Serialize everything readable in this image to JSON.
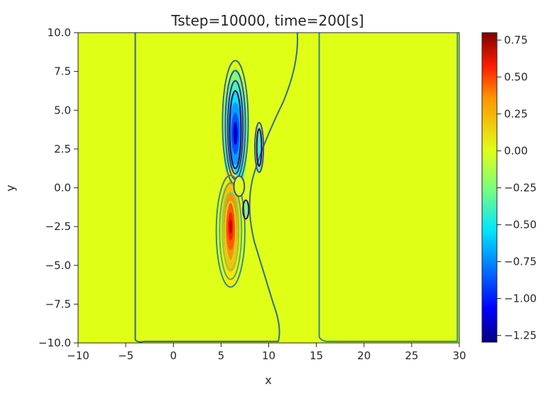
{
  "chart_data": {
    "type": "heatmap",
    "title": "Tstep=10000, time=200[s]",
    "xlabel": "x",
    "ylabel": "y",
    "xlim": [
      -10,
      30
    ],
    "ylim": [
      -10,
      10
    ],
    "x_ticks": [
      -10,
      -5,
      0,
      5,
      10,
      15,
      20,
      25,
      30
    ],
    "x_tick_labels": [
      "−10",
      "−5",
      "0",
      "5",
      "10",
      "15",
      "20",
      "25",
      "30"
    ],
    "y_ticks": [
      -10,
      -7.5,
      -5,
      -2.5,
      0,
      2.5,
      5,
      7.5,
      10
    ],
    "y_tick_labels": [
      "−10.0",
      "−7.5",
      "−5.0",
      "−2.5",
      "0.0",
      "2.5",
      "5.0",
      "7.5",
      "10.0"
    ],
    "colorbar": {
      "colormap": "jet",
      "range": [
        -1.3,
        0.8
      ],
      "ticks": [
        0.75,
        0.5,
        0.25,
        0,
        -0.25,
        -0.5,
        -0.75,
        -1,
        -1.25
      ],
      "tick_labels": [
        "0.75",
        "0.50",
        "0.25",
        "0.00",
        "−0.25",
        "−0.50",
        "−0.75",
        "−1.00",
        "−1.25"
      ]
    },
    "field_features": [
      {
        "kind": "negative-lobe",
        "center": [
          6.5,
          3.5
        ],
        "extent": [
          1.3,
          4.2
        ],
        "min": -1.3
      },
      {
        "kind": "positive-lobe",
        "center": [
          6.0,
          -2.5
        ],
        "extent": [
          1.2,
          3.8
        ],
        "max": 0.8
      },
      {
        "kind": "negative-lobe",
        "center": [
          9.0,
          2.5
        ],
        "extent": [
          0.4,
          1.5
        ],
        "min": -0.4
      },
      {
        "kind": "positive-lobe",
        "center": [
          6.9,
          0.2
        ],
        "extent": [
          0.5,
          0.6
        ],
        "max": 0.05
      },
      {
        "kind": "negative-lobe",
        "center": [
          7.6,
          -1.5
        ],
        "extent": [
          0.3,
          0.6
        ],
        "min": -0.2
      }
    ],
    "background_value": 0.0,
    "grid": false
  }
}
